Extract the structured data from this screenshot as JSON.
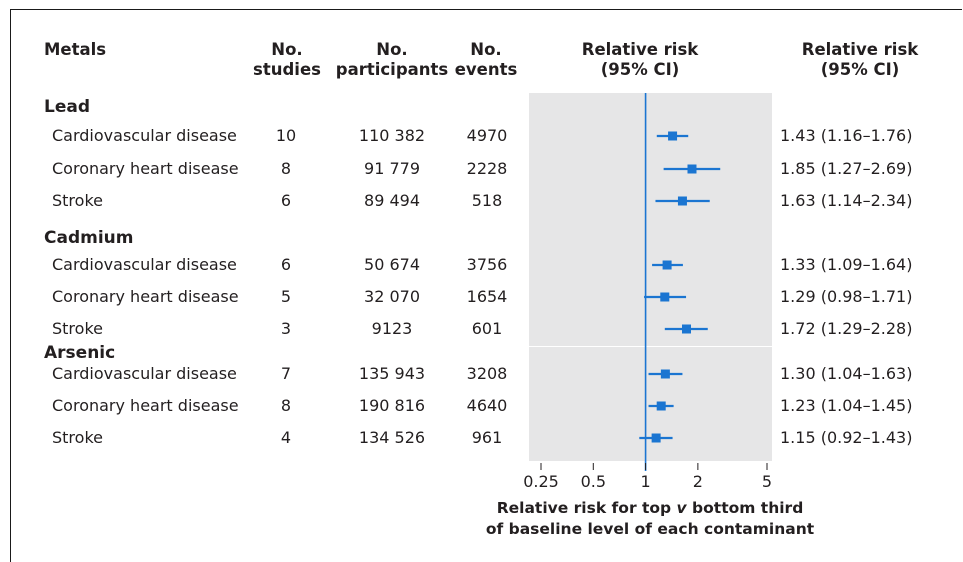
{
  "headers": {
    "metals": "Metals",
    "studies": [
      "No.",
      "studies"
    ],
    "participants": [
      "No.",
      "participants"
    ],
    "events": [
      "No.",
      "events"
    ],
    "rr_plot": [
      "Relative risk",
      "(95% CI)"
    ],
    "rr_text": [
      "Relative risk",
      "(95% CI)"
    ]
  },
  "groups": [
    {
      "name": "Lead",
      "rows": [
        {
          "outcome": "Cardiovascular disease",
          "studies": "10",
          "participants": "110 382",
          "events": "4970",
          "ci_text": "1.43 (1.16–1.76)"
        },
        {
          "outcome": "Coronary heart disease",
          "studies": "8",
          "participants": "91 779",
          "events": "2228",
          "ci_text": "1.85 (1.27–2.69)"
        },
        {
          "outcome": "Stroke",
          "studies": "6",
          "participants": "89 494",
          "events": "518",
          "ci_text": "1.63 (1.14–2.34)"
        }
      ]
    },
    {
      "name": "Cadmium",
      "rows": [
        {
          "outcome": "Cardiovascular disease",
          "studies": "6",
          "participants": "50 674",
          "events": "3756",
          "ci_text": "1.33 (1.09–1.64)"
        },
        {
          "outcome": "Coronary heart disease",
          "studies": "5",
          "participants": "32 070",
          "events": "1654",
          "ci_text": "1.29 (0.98–1.71)"
        },
        {
          "outcome": "Stroke",
          "studies": "3",
          "participants": "9123",
          "events": "601",
          "ci_text": "1.72 (1.29–2.28)"
        }
      ]
    },
    {
      "name": "Arsenic",
      "rows": [
        {
          "outcome": "Cardiovascular disease",
          "studies": "7",
          "participants": "135 943",
          "events": "3208",
          "ci_text": "1.30 (1.04–1.63)"
        },
        {
          "outcome": "Coronary heart disease",
          "studies": "8",
          "participants": "190 816",
          "events": "4640",
          "ci_text": "1.23 (1.04–1.45)"
        },
        {
          "outcome": "Stroke",
          "studies": "4",
          "participants": "134 526",
          "events": "961",
          "ci_text": "1.15 (0.92–1.43)"
        }
      ]
    }
  ],
  "chart_data": {
    "type": "forest",
    "xlabel": "Relative risk for top v bottom third of baseline level of each contaminant",
    "x_scale": "log",
    "xlim": [
      0.25,
      5
    ],
    "ticks": [
      {
        "value": 0.25,
        "label": "0.25"
      },
      {
        "value": 0.5,
        "label": "0.5"
      },
      {
        "value": 1,
        "label": "1"
      },
      {
        "value": 2,
        "label": "2"
      },
      {
        "value": 5,
        "label": "5"
      }
    ],
    "reference_line": 1,
    "marker_color": "#1b75d1",
    "points": [
      {
        "group": "Lead",
        "outcome": "Cardiovascular disease",
        "rr": 1.43,
        "lo": 1.16,
        "hi": 1.76
      },
      {
        "group": "Lead",
        "outcome": "Coronary heart disease",
        "rr": 1.85,
        "lo": 1.27,
        "hi": 2.69
      },
      {
        "group": "Lead",
        "outcome": "Stroke",
        "rr": 1.63,
        "lo": 1.14,
        "hi": 2.34
      },
      {
        "group": "Cadmium",
        "outcome": "Cardiovascular disease",
        "rr": 1.33,
        "lo": 1.09,
        "hi": 1.64
      },
      {
        "group": "Cadmium",
        "outcome": "Coronary heart disease",
        "rr": 1.29,
        "lo": 0.98,
        "hi": 1.71
      },
      {
        "group": "Cadmium",
        "outcome": "Stroke",
        "rr": 1.72,
        "lo": 1.29,
        "hi": 2.28
      },
      {
        "group": "Arsenic",
        "outcome": "Cardiovascular disease",
        "rr": 1.3,
        "lo": 1.04,
        "hi": 1.63
      },
      {
        "group": "Arsenic",
        "outcome": "Coronary heart disease",
        "rr": 1.23,
        "lo": 1.04,
        "hi": 1.45
      },
      {
        "group": "Arsenic",
        "outcome": "Stroke",
        "rr": 1.15,
        "lo": 0.92,
        "hi": 1.43
      }
    ]
  }
}
